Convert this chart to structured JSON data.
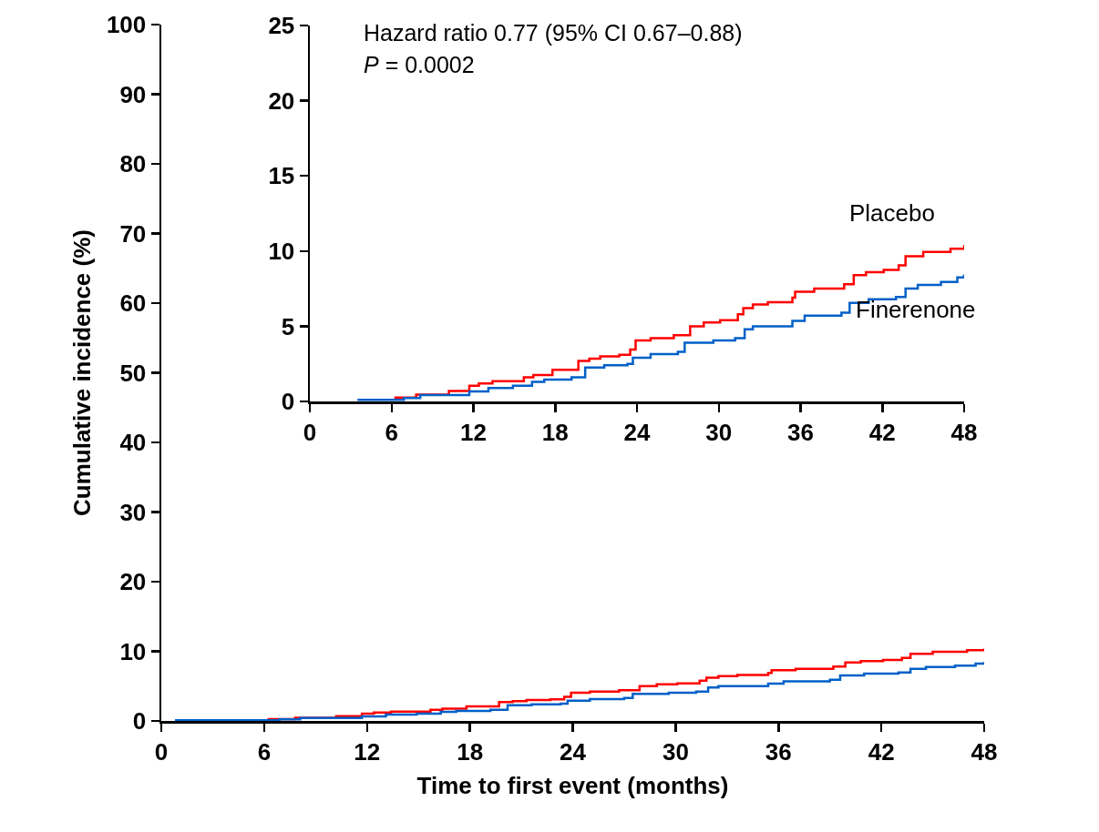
{
  "chart_data": [
    {
      "type": "step",
      "xlabel": "Time to first event (months)",
      "ylabel": "Cumulative incidence (%)",
      "xlim": [
        0,
        48
      ],
      "xticks": [
        0,
        6,
        12,
        18,
        24,
        30,
        36,
        42,
        48
      ],
      "ylim": [
        0,
        100
      ],
      "yticks": [
        0,
        10,
        20,
        30,
        40,
        50,
        60,
        70,
        80,
        90,
        100
      ],
      "grid": false,
      "legend": false,
      "series": [
        {
          "color": "#ff0000",
          "x": [
            6.2,
            7.8,
            10.2,
            11.7,
            12.4,
            13.4,
            15.7,
            16.4,
            17.8,
            19.7,
            20.5,
            21.3,
            22.7,
            23.5,
            23.9,
            25,
            26.7,
            27.9,
            28.9,
            30.1,
            31.4,
            31.8,
            32.5,
            33.6,
            35.4,
            35.6,
            37,
            39.2,
            39.9,
            40.8,
            42.1,
            43.2,
            43.7,
            45,
            47,
            48
          ],
          "values": [
            0.26,
            0.45,
            0.69,
            1.05,
            1.2,
            1.35,
            1.6,
            1.75,
            2.1,
            2.7,
            2.85,
            3.0,
            3.1,
            3.45,
            4.05,
            4.2,
            4.4,
            5.0,
            5.25,
            5.4,
            5.8,
            6.2,
            6.45,
            6.6,
            6.9,
            7.3,
            7.5,
            7.8,
            8.4,
            8.6,
            8.75,
            9.05,
            9.65,
            9.95,
            10.15,
            10.4
          ]
        },
        {
          "color": "#0060c8",
          "x": [
            0.8,
            6.9,
            8.1,
            11.7,
            13.1,
            14.9,
            16.3,
            17.2,
            19.2,
            20.2,
            21.6,
            23.3,
            23.7,
            25,
            27,
            27.5,
            29.6,
            31.2,
            31.9,
            32.5,
            35.4,
            36.3,
            39,
            39.6,
            41,
            43,
            43.7,
            44.6,
            46.3,
            47.5,
            48
          ],
          "values": [
            0.1,
            0.22,
            0.42,
            0.66,
            0.9,
            1.05,
            1.3,
            1.45,
            1.6,
            2.25,
            2.4,
            2.5,
            2.9,
            3.15,
            3.3,
            3.9,
            4.05,
            4.2,
            4.8,
            5.0,
            5.35,
            5.7,
            5.9,
            6.55,
            6.8,
            6.95,
            7.5,
            7.75,
            7.95,
            8.25,
            8.45
          ]
        }
      ]
    },
    {
      "type": "step",
      "xlim": [
        0,
        48
      ],
      "xticks": [
        0,
        6,
        12,
        18,
        24,
        30,
        36,
        42,
        48
      ],
      "ylim": [
        0,
        25
      ],
      "yticks": [
        0,
        5,
        10,
        15,
        20,
        25
      ],
      "grid": false,
      "legend": false,
      "annotations": [
        "Hazard ratio 0.77 (95% CI 0.67–0.88)",
        "P = 0.0002"
      ],
      "series": [
        {
          "name": "Placebo",
          "color": "#ff0000",
          "x": [
            6.2,
            7.8,
            10.2,
            11.7,
            12.4,
            13.4,
            15.7,
            16.4,
            17.8,
            19.7,
            20.5,
            21.3,
            22.7,
            23.5,
            23.9,
            25,
            26.7,
            27.9,
            28.9,
            30.1,
            31.4,
            31.8,
            32.5,
            33.6,
            35.4,
            35.6,
            37,
            39.2,
            39.9,
            40.8,
            42.1,
            43.2,
            43.7,
            45,
            47,
            48
          ],
          "values": [
            0.26,
            0.45,
            0.69,
            1.05,
            1.2,
            1.35,
            1.6,
            1.75,
            2.1,
            2.7,
            2.85,
            3.0,
            3.1,
            3.45,
            4.05,
            4.2,
            4.4,
            5.0,
            5.25,
            5.4,
            5.8,
            6.2,
            6.45,
            6.6,
            6.9,
            7.3,
            7.5,
            7.8,
            8.4,
            8.6,
            8.75,
            9.05,
            9.65,
            9.95,
            10.15,
            10.4
          ]
        },
        {
          "name": "Finerenone",
          "color": "#0060c8",
          "x": [
            3.5,
            6.9,
            8.1,
            11.7,
            13.1,
            14.9,
            16.3,
            17.2,
            19.2,
            20.2,
            21.6,
            23.3,
            23.7,
            25,
            27,
            27.5,
            29.6,
            31.2,
            31.9,
            32.5,
            35.4,
            36.3,
            39,
            39.6,
            41,
            43,
            43.7,
            44.6,
            46.3,
            47.5,
            48
          ],
          "values": [
            0.1,
            0.22,
            0.42,
            0.66,
            0.9,
            1.05,
            1.3,
            1.45,
            1.6,
            2.25,
            2.4,
            2.5,
            2.9,
            3.15,
            3.3,
            3.9,
            4.05,
            4.2,
            4.8,
            5.0,
            5.35,
            5.7,
            5.9,
            6.55,
            6.8,
            6.95,
            7.5,
            7.75,
            7.95,
            8.25,
            8.45
          ]
        }
      ]
    }
  ]
}
